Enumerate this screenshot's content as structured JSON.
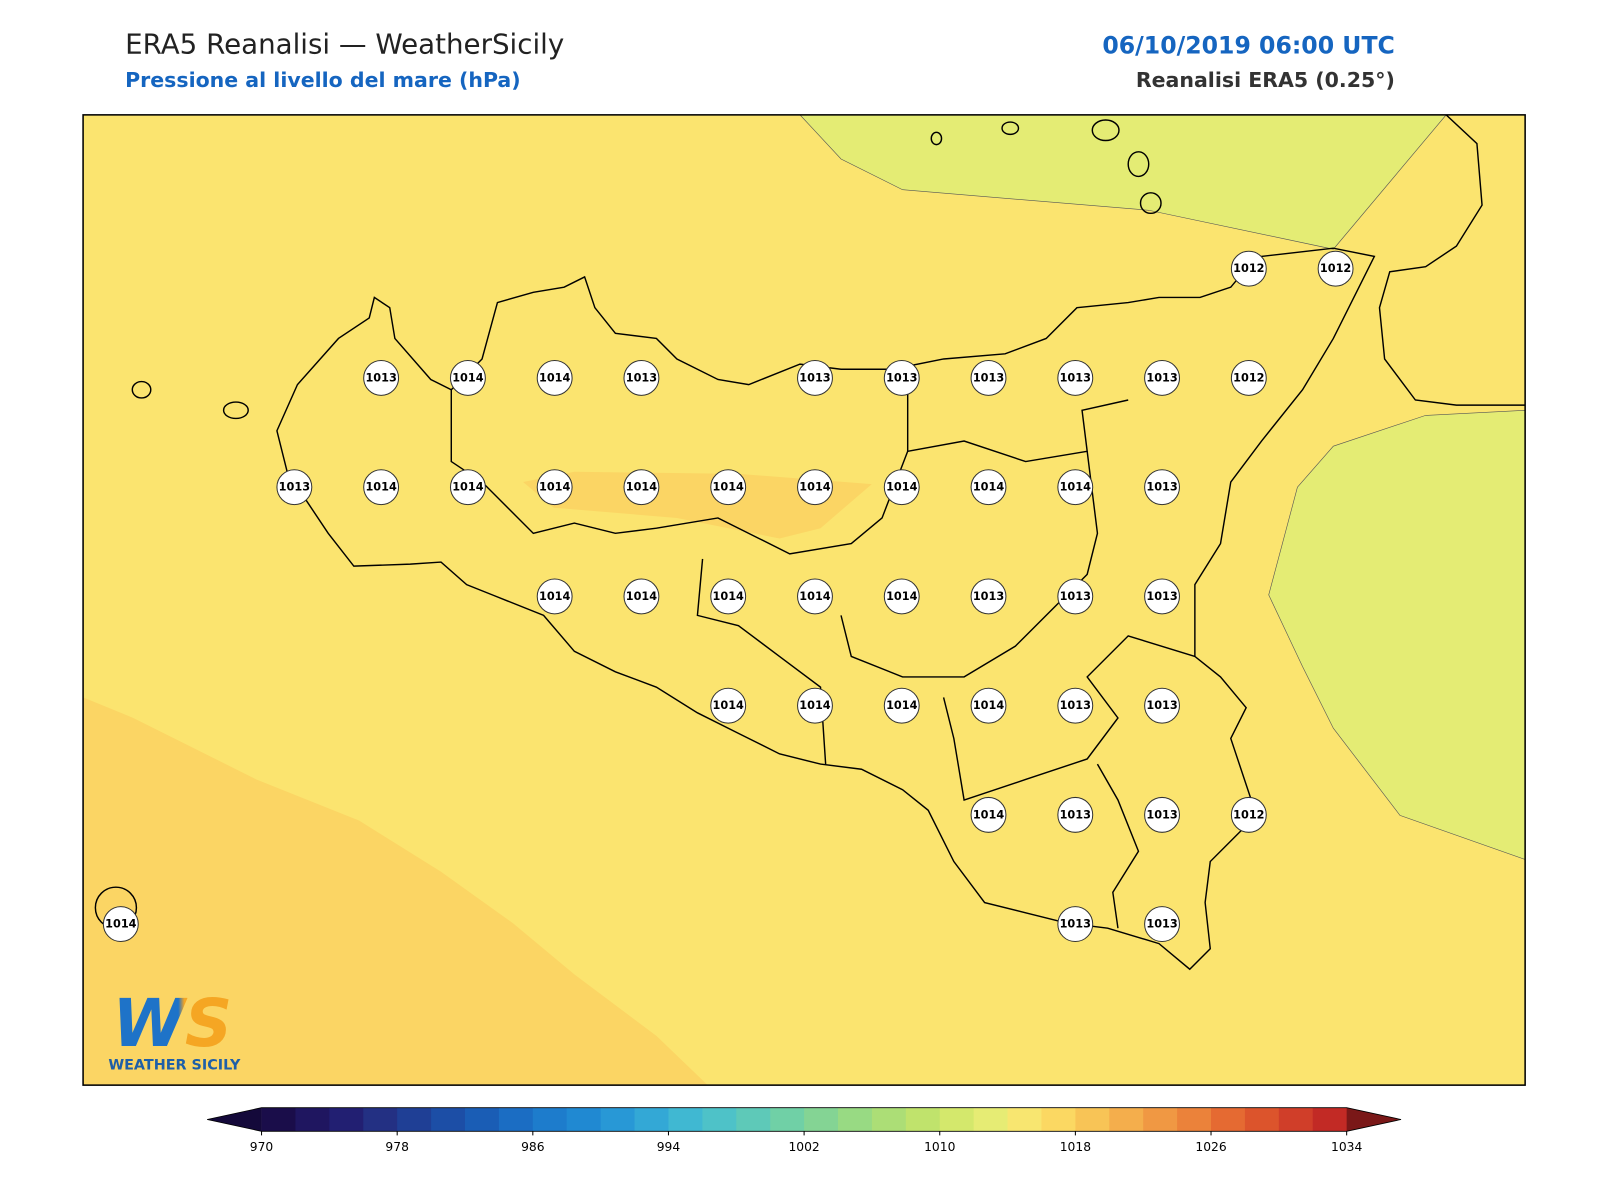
{
  "header": {
    "title": "ERA5 Reanalisi — WeatherSicily",
    "subtitle": "Pressione al livello del mare (hPa)",
    "datetime": "06/10/2019 06:00 UTC",
    "source": "Reanalisi ERA5 (0.25°)"
  },
  "stations": [
    1012,
    1012,
    1013,
    1014,
    1014,
    1013,
    1013,
    1013,
    1013,
    1013,
    1013,
    1012,
    1013,
    1014,
    1014,
    1014,
    1014,
    1014,
    1014,
    1014,
    1014,
    1014,
    1013,
    1014,
    1014,
    1014,
    1014,
    1014,
    1013,
    1013,
    1013,
    1014,
    1014,
    1014,
    1014,
    1013,
    1013,
    1014,
    1013,
    1013,
    1012,
    1013,
    1013,
    1014
  ],
  "colorbar": {
    "lim": [
      970,
      1034
    ],
    "ticks": [
      970,
      978,
      986,
      994,
      1002,
      1010,
      1018,
      1026,
      1034
    ],
    "colors": [
      "#1a0d4a",
      "#1f1660",
      "#221f72",
      "#233083",
      "#1f3f95",
      "#1c4ea6",
      "#1a5db5",
      "#1b6dc3",
      "#1d7ccc",
      "#2089d2",
      "#2898d6",
      "#33a8d6",
      "#40b8d2",
      "#4ec2c8",
      "#5ec9b8",
      "#70d0a6",
      "#84d494",
      "#98da83",
      "#acde76",
      "#c0e36c",
      "#d4e86c",
      "#e6ec74",
      "#f8e670",
      "#fbd862",
      "#f8c456",
      "#f4ae4c",
      "#f09843",
      "#eb823a",
      "#e56a32",
      "#dc542c",
      "#d03e29",
      "#c22a25"
    ],
    "under_color": "#14093a",
    "over_color": "#7a1818"
  },
  "logo": {
    "mark": "WS",
    "name": "WEATHER SICILY"
  }
}
